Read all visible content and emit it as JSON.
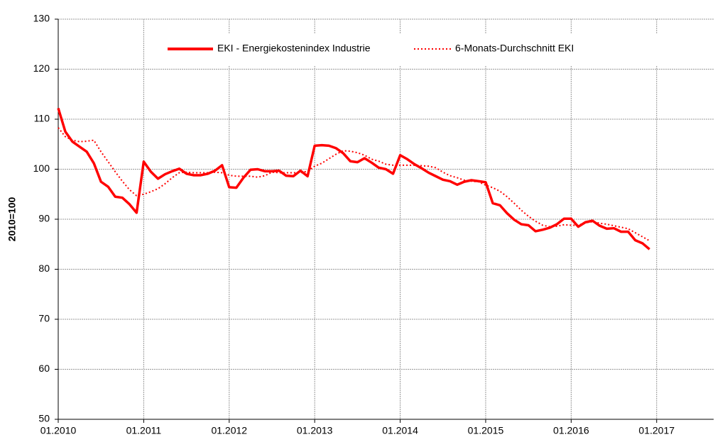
{
  "chart_data": {
    "type": "line",
    "y_label": "2010=100",
    "x": [
      "01.2010",
      "02.2010",
      "03.2010",
      "04.2010",
      "05.2010",
      "06.2010",
      "07.2010",
      "08.2010",
      "09.2010",
      "10.2010",
      "11.2010",
      "12.2010",
      "01.2011",
      "02.2011",
      "03.2011",
      "04.2011",
      "05.2011",
      "06.2011",
      "07.2011",
      "08.2011",
      "09.2011",
      "10.2011",
      "11.2011",
      "12.2011",
      "01.2012",
      "02.2012",
      "03.2012",
      "04.2012",
      "05.2012",
      "06.2012",
      "07.2012",
      "08.2012",
      "09.2012",
      "10.2012",
      "11.2012",
      "12.2012",
      "01.2013",
      "02.2013",
      "03.2013",
      "04.2013",
      "05.2013",
      "06.2013",
      "07.2013",
      "08.2013",
      "09.2013",
      "10.2013",
      "11.2013",
      "12.2013",
      "01.2014",
      "02.2014",
      "03.2014",
      "04.2014",
      "05.2014",
      "06.2014",
      "07.2014",
      "08.2014",
      "09.2014",
      "10.2014",
      "11.2014",
      "12.2014",
      "01.2015",
      "02.2015",
      "03.2015",
      "04.2015",
      "05.2015",
      "06.2015",
      "07.2015",
      "08.2015",
      "09.2015",
      "10.2015",
      "11.2015",
      "12.2015",
      "01.2016",
      "02.2016",
      "03.2016",
      "04.2016",
      "05.2016",
      "06.2016",
      "07.2016",
      "08.2016",
      "09.2016",
      "10.2016",
      "11.2016",
      "12.2016"
    ],
    "series": [
      {
        "name": "EKI - Energiekostenindex Industrie",
        "color": "#ff0000",
        "style": "solid",
        "values": [
          112.2,
          107.5,
          105.5,
          104.5,
          103.5,
          101.2,
          97.5,
          96.5,
          94.5,
          94.3,
          93.0,
          91.3,
          101.5,
          99.5,
          98.1,
          99.0,
          99.6,
          100.1,
          99.1,
          98.8,
          98.8,
          99.1,
          99.7,
          100.8,
          96.4,
          96.3,
          98.3,
          99.9,
          100.0,
          99.6,
          99.6,
          99.7,
          98.7,
          98.6,
          99.7,
          98.6,
          104.7,
          104.8,
          104.7,
          104.2,
          103.2,
          101.6,
          101.4,
          102.2,
          101.3,
          100.3,
          100.0,
          99.1,
          102.8,
          102.0,
          101.0,
          100.2,
          99.3,
          98.6,
          97.9,
          97.6,
          96.9,
          97.5,
          97.8,
          97.6,
          97.4,
          93.2,
          92.8,
          91.2,
          89.9,
          89.0,
          88.8,
          87.6,
          87.9,
          88.3,
          89.0,
          90.1,
          90.1,
          88.5,
          89.4,
          89.7,
          88.7,
          88.1,
          88.2,
          87.5,
          87.5,
          85.8,
          85.2,
          84.0
        ]
      },
      {
        "name": "6-Monats-Durchschnitt EKI",
        "color": "#ff0000",
        "style": "dotted",
        "values": [
          108.3,
          106.5,
          105.8,
          105.5,
          105.6,
          105.8,
          103.5,
          101.5,
          99.5,
          97.6,
          95.9,
          94.7,
          95.0,
          95.5,
          96.1,
          97.1,
          98.3,
          99.3,
          99.4,
          99.3,
          99.3,
          99.3,
          99.4,
          99.3,
          98.8,
          98.6,
          98.6,
          98.6,
          98.4,
          98.7,
          99.4,
          99.3,
          99.3,
          99.3,
          99.3,
          99.6,
          100.6,
          101.2,
          102.1,
          103.0,
          103.7,
          103.6,
          103.3,
          102.8,
          102.0,
          101.6,
          101.0,
          100.8,
          100.8,
          100.8,
          100.8,
          100.7,
          100.6,
          100.3,
          99.4,
          98.7,
          98.3,
          97.8,
          97.6,
          97.5,
          96.8,
          96.3,
          95.6,
          94.5,
          93.2,
          91.8,
          90.6,
          89.6,
          88.8,
          88.5,
          88.6,
          88.9,
          88.8,
          88.8,
          89.3,
          89.5,
          89.2,
          89.0,
          88.7,
          88.4,
          88.1,
          87.3,
          86.5,
          85.7
        ]
      }
    ],
    "xlim": [
      "01.2010",
      "09.2017"
    ],
    "xticks": [
      "01.2010",
      "01.2011",
      "01.2012",
      "01.2013",
      "01.2014",
      "01.2015",
      "01.2016",
      "01.2017"
    ],
    "ylim": [
      50,
      130
    ],
    "yticks": [
      50,
      60,
      70,
      80,
      90,
      100,
      110,
      120,
      130
    ],
    "grid": true,
    "legend": "top"
  }
}
